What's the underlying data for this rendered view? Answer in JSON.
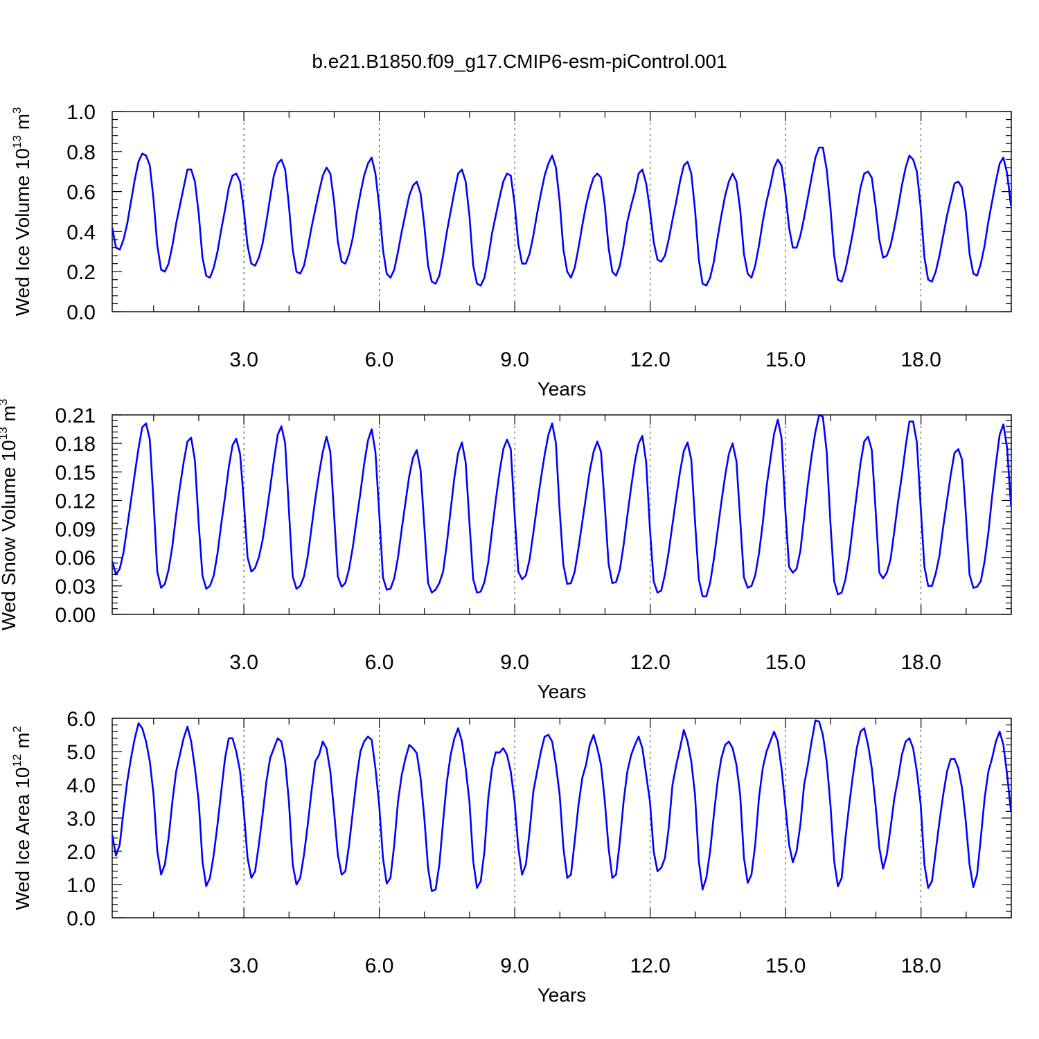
{
  "title": "b.e21.B1850.f09_g17.CMIP6-esm-piControl.001",
  "colors": {
    "line": "#0000ff",
    "axes": "#000000",
    "grid": "#000000"
  },
  "chart_data": [
    {
      "type": "line",
      "ylabel_main": "Wed Ice Volume 10",
      "ylabel_exp": "13",
      "ylabel_unit": " m",
      "ylabel_unit_exp": "3",
      "xlabel": "Years",
      "ylim": [
        0.0,
        1.0
      ],
      "yticks": [
        "0.0",
        "0.2",
        "0.4",
        "0.6",
        "0.8",
        "1.0"
      ],
      "xlim": [
        0.083,
        20.0
      ],
      "xticks": [
        "3.0",
        "6.0",
        "9.0",
        "12.0",
        "15.0",
        "18.0"
      ],
      "grid": "vertical dashed at major x ticks",
      "series": [
        {
          "x_start": 0.083,
          "x_step": 0.0833,
          "values": [
            0.42,
            0.32,
            0.31,
            0.36,
            0.44,
            0.55,
            0.66,
            0.75,
            0.79,
            0.78,
            0.73,
            0.56,
            0.33,
            0.21,
            0.2,
            0.24,
            0.33,
            0.44,
            0.53,
            0.62,
            0.71,
            0.71,
            0.65,
            0.49,
            0.27,
            0.18,
            0.17,
            0.22,
            0.3,
            0.41,
            0.51,
            0.62,
            0.68,
            0.69,
            0.65,
            0.51,
            0.33,
            0.24,
            0.23,
            0.27,
            0.34,
            0.45,
            0.57,
            0.68,
            0.74,
            0.76,
            0.71,
            0.53,
            0.31,
            0.2,
            0.19,
            0.23,
            0.32,
            0.42,
            0.51,
            0.6,
            0.68,
            0.72,
            0.69,
            0.55,
            0.35,
            0.25,
            0.24,
            0.29,
            0.37,
            0.49,
            0.59,
            0.68,
            0.74,
            0.77,
            0.69,
            0.53,
            0.31,
            0.19,
            0.17,
            0.21,
            0.3,
            0.4,
            0.49,
            0.58,
            0.63,
            0.65,
            0.59,
            0.43,
            0.23,
            0.15,
            0.14,
            0.18,
            0.28,
            0.4,
            0.5,
            0.6,
            0.69,
            0.71,
            0.65,
            0.48,
            0.23,
            0.14,
            0.13,
            0.17,
            0.27,
            0.39,
            0.48,
            0.57,
            0.65,
            0.69,
            0.68,
            0.54,
            0.34,
            0.24,
            0.24,
            0.29,
            0.38,
            0.49,
            0.59,
            0.68,
            0.74,
            0.78,
            0.72,
            0.55,
            0.31,
            0.2,
            0.17,
            0.22,
            0.32,
            0.43,
            0.53,
            0.61,
            0.67,
            0.69,
            0.67,
            0.53,
            0.32,
            0.2,
            0.18,
            0.23,
            0.33,
            0.45,
            0.53,
            0.6,
            0.69,
            0.71,
            0.64,
            0.51,
            0.35,
            0.26,
            0.25,
            0.28,
            0.36,
            0.46,
            0.55,
            0.65,
            0.73,
            0.75,
            0.69,
            0.51,
            0.26,
            0.14,
            0.13,
            0.17,
            0.25,
            0.37,
            0.48,
            0.58,
            0.65,
            0.69,
            0.65,
            0.51,
            0.29,
            0.19,
            0.17,
            0.23,
            0.33,
            0.45,
            0.55,
            0.63,
            0.72,
            0.76,
            0.73,
            0.6,
            0.42,
            0.32,
            0.32,
            0.38,
            0.47,
            0.57,
            0.67,
            0.77,
            0.82,
            0.82,
            0.71,
            0.52,
            0.28,
            0.16,
            0.15,
            0.21,
            0.3,
            0.4,
            0.51,
            0.62,
            0.69,
            0.7,
            0.67,
            0.53,
            0.36,
            0.27,
            0.28,
            0.33,
            0.42,
            0.52,
            0.63,
            0.72,
            0.78,
            0.76,
            0.7,
            0.52,
            0.27,
            0.16,
            0.15,
            0.2,
            0.28,
            0.38,
            0.48,
            0.56,
            0.64,
            0.65,
            0.62,
            0.5,
            0.29,
            0.19,
            0.18,
            0.24,
            0.33,
            0.45,
            0.55,
            0.65,
            0.74,
            0.77,
            0.69,
            0.53
          ]
        }
      ]
    },
    {
      "type": "line",
      "ylabel_main": "Wed Snow Volume 10",
      "ylabel_exp": "13",
      "ylabel_unit": " m",
      "ylabel_unit_exp": "3",
      "xlabel": "Years",
      "ylim": [
        0.0,
        0.21
      ],
      "yticks": [
        "0.00",
        "0.03",
        "0.06",
        "0.09",
        "0.12",
        "0.15",
        "0.18",
        "0.21"
      ],
      "xlim": [
        0.083,
        20.0
      ],
      "xticks": [
        "3.0",
        "6.0",
        "9.0",
        "12.0",
        "15.0",
        "18.0"
      ],
      "grid": "vertical dashed at major x ticks",
      "series": [
        {
          "x_start": 0.083,
          "x_step": 0.0833,
          "values": [
            0.056,
            0.042,
            0.048,
            0.065,
            0.092,
            0.12,
            0.148,
            0.175,
            0.197,
            0.201,
            0.184,
            0.118,
            0.045,
            0.028,
            0.032,
            0.047,
            0.072,
            0.105,
            0.134,
            0.16,
            0.182,
            0.186,
            0.162,
            0.095,
            0.041,
            0.027,
            0.03,
            0.041,
            0.064,
            0.095,
            0.124,
            0.155,
            0.178,
            0.185,
            0.169,
            0.119,
            0.06,
            0.045,
            0.049,
            0.06,
            0.078,
            0.105,
            0.133,
            0.162,
            0.189,
            0.198,
            0.18,
            0.11,
            0.04,
            0.027,
            0.03,
            0.04,
            0.061,
            0.091,
            0.121,
            0.148,
            0.171,
            0.187,
            0.171,
            0.105,
            0.04,
            0.029,
            0.033,
            0.048,
            0.071,
            0.1,
            0.128,
            0.158,
            0.183,
            0.195,
            0.171,
            0.108,
            0.039,
            0.026,
            0.027,
            0.038,
            0.06,
            0.09,
            0.118,
            0.146,
            0.165,
            0.173,
            0.152,
            0.093,
            0.033,
            0.023,
            0.026,
            0.033,
            0.045,
            0.075,
            0.11,
            0.144,
            0.17,
            0.181,
            0.16,
            0.097,
            0.037,
            0.023,
            0.024,
            0.034,
            0.055,
            0.088,
            0.12,
            0.15,
            0.174,
            0.184,
            0.174,
            0.106,
            0.045,
            0.037,
            0.041,
            0.058,
            0.086,
            0.115,
            0.143,
            0.168,
            0.189,
            0.201,
            0.18,
            0.109,
            0.052,
            0.032,
            0.033,
            0.045,
            0.07,
            0.097,
            0.124,
            0.151,
            0.171,
            0.182,
            0.171,
            0.114,
            0.053,
            0.033,
            0.034,
            0.047,
            0.073,
            0.104,
            0.134,
            0.161,
            0.18,
            0.188,
            0.16,
            0.09,
            0.035,
            0.023,
            0.025,
            0.042,
            0.066,
            0.095,
            0.123,
            0.15,
            0.172,
            0.181,
            0.163,
            0.098,
            0.037,
            0.019,
            0.019,
            0.033,
            0.058,
            0.088,
            0.118,
            0.146,
            0.169,
            0.18,
            0.161,
            0.1,
            0.039,
            0.028,
            0.03,
            0.041,
            0.064,
            0.096,
            0.134,
            0.162,
            0.19,
            0.205,
            0.186,
            0.111,
            0.05,
            0.044,
            0.048,
            0.067,
            0.102,
            0.137,
            0.167,
            0.192,
            0.21,
            0.208,
            0.171,
            0.096,
            0.035,
            0.021,
            0.023,
            0.037,
            0.061,
            0.095,
            0.127,
            0.159,
            0.182,
            0.187,
            0.173,
            0.111,
            0.044,
            0.038,
            0.044,
            0.058,
            0.088,
            0.119,
            0.146,
            0.177,
            0.203,
            0.203,
            0.181,
            0.113,
            0.05,
            0.03,
            0.03,
            0.043,
            0.062,
            0.092,
            0.12,
            0.147,
            0.17,
            0.174,
            0.163,
            0.107,
            0.042,
            0.028,
            0.029,
            0.035,
            0.056,
            0.086,
            0.124,
            0.158,
            0.189,
            0.2,
            0.175,
            0.115
          ]
        }
      ]
    },
    {
      "type": "line",
      "ylabel_main": "Wed Ice Area 10",
      "ylabel_exp": "12",
      "ylabel_unit": " m",
      "ylabel_unit_exp": "2",
      "xlabel": "Years",
      "ylim": [
        0.0,
        6.0
      ],
      "yticks": [
        "0.0",
        "1.0",
        "2.0",
        "3.0",
        "4.0",
        "5.0",
        "6.0"
      ],
      "xlim": [
        0.083,
        20.0
      ],
      "xticks": [
        "3.0",
        "6.0",
        "9.0",
        "12.0",
        "15.0",
        "18.0"
      ],
      "grid": "vertical dashed at major x ticks",
      "series": [
        {
          "x_start": 0.083,
          "x_step": 0.0833,
          "values": [
            2.5,
            1.87,
            2.2,
            3.2,
            4.1,
            4.8,
            5.4,
            5.85,
            5.7,
            5.3,
            4.7,
            3.7,
            2.0,
            1.3,
            1.6,
            2.4,
            3.5,
            4.4,
            4.9,
            5.4,
            5.75,
            5.3,
            4.5,
            3.5,
            1.7,
            0.95,
            1.2,
            1.9,
            2.8,
            3.8,
            4.8,
            5.4,
            5.4,
            5.0,
            4.4,
            3.2,
            1.8,
            1.2,
            1.4,
            2.2,
            3.1,
            4.1,
            4.8,
            5.1,
            5.4,
            5.3,
            4.7,
            3.5,
            1.6,
            1.0,
            1.2,
            1.9,
            2.8,
            3.8,
            4.7,
            4.9,
            5.3,
            5.1,
            4.4,
            3.2,
            1.9,
            1.3,
            1.4,
            2.2,
            3.2,
            4.2,
            5.0,
            5.3,
            5.45,
            5.35,
            4.5,
            3.4,
            1.8,
            1.03,
            1.2,
            2.2,
            3.5,
            4.3,
            4.8,
            5.2,
            5.1,
            4.95,
            4.2,
            3.0,
            1.5,
            0.8,
            0.85,
            1.6,
            2.9,
            4.1,
            4.9,
            5.4,
            5.7,
            5.3,
            4.5,
            3.5,
            1.7,
            0.9,
            1.1,
            2.0,
            3.6,
            4.5,
            4.98,
            4.97,
            5.1,
            4.9,
            4.4,
            3.5,
            2.1,
            1.3,
            1.6,
            2.6,
            3.8,
            4.4,
            5.0,
            5.45,
            5.5,
            5.3,
            4.6,
            3.7,
            2.1,
            1.2,
            1.3,
            2.3,
            3.4,
            4.2,
            4.6,
            5.2,
            5.5,
            5.1,
            4.6,
            3.5,
            2.1,
            1.2,
            1.3,
            2.3,
            3.5,
            4.4,
            4.9,
            5.2,
            5.45,
            5.1,
            4.3,
            3.5,
            2.0,
            1.4,
            1.5,
            1.8,
            2.7,
            4.0,
            4.6,
            5.1,
            5.65,
            5.3,
            4.7,
            3.7,
            1.7,
            0.85,
            1.2,
            2.0,
            3.1,
            4.1,
            4.8,
            5.2,
            5.3,
            5.1,
            4.6,
            3.7,
            1.8,
            1.05,
            1.3,
            2.2,
            3.6,
            4.5,
            5.0,
            5.3,
            5.6,
            5.3,
            4.5,
            3.4,
            2.2,
            1.67,
            2.0,
            2.8,
            4.0,
            4.6,
            5.3,
            5.94,
            5.9,
            5.5,
            4.7,
            3.4,
            1.7,
            0.95,
            1.2,
            2.4,
            3.4,
            4.3,
            5.1,
            5.6,
            5.7,
            5.2,
            4.5,
            3.4,
            2.1,
            1.48,
            1.9,
            2.7,
            3.6,
            4.2,
            4.9,
            5.3,
            5.4,
            5.1,
            4.4,
            3.4,
            1.6,
            0.9,
            1.1,
            2.0,
            2.9,
            3.7,
            4.4,
            4.78,
            4.78,
            4.5,
            3.9,
            2.9,
            1.6,
            0.92,
            1.3,
            2.4,
            3.6,
            4.4,
            4.8,
            5.3,
            5.6,
            5.2,
            4.3,
            3.2
          ]
        }
      ]
    }
  ]
}
